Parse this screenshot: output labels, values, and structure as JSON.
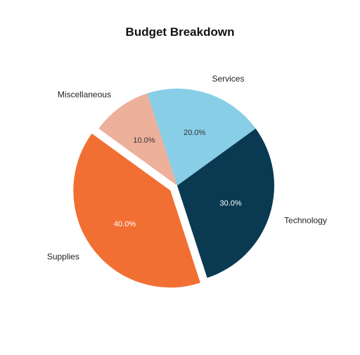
{
  "chart_data": {
    "type": "pie",
    "title": "Budget Breakdown",
    "slices": [
      {
        "label": "Services",
        "value": 20.0,
        "pct_label": "20.0%",
        "color": "#87CEE6",
        "text_color": "#333333",
        "exploded": false
      },
      {
        "label": "Technology",
        "value": 30.0,
        "pct_label": "30.0%",
        "color": "#0A3A52",
        "text_color": "#ffffff",
        "exploded": false
      },
      {
        "label": "Supplies",
        "value": 40.0,
        "pct_label": "40.0%",
        "color": "#F26F33",
        "text_color": "#ffffff",
        "exploded": true
      },
      {
        "label": "Miscellaneous",
        "value": 10.0,
        "pct_label": "10.0%",
        "color": "#ECB09B",
        "text_color": "#333333",
        "exploded": false
      }
    ],
    "start_angle_deg": 108,
    "direction": "clockwise",
    "legend": "none"
  }
}
